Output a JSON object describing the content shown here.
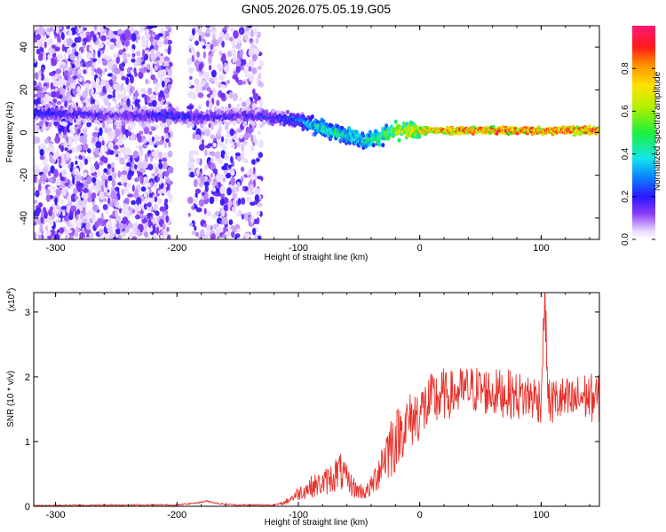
{
  "figure": {
    "title": "GN05.2026.075.05.19.G05"
  },
  "chart_data": [
    {
      "type": "heatmap",
      "xlabel": "Height of straight line (km)",
      "ylabel": "Frequency (Hz)",
      "xlim": [
        -318,
        148
      ],
      "ylim": [
        -50,
        50
      ],
      "x_ticks": [
        -300,
        -200,
        -100,
        0,
        100
      ],
      "x_tick_labels": [
        "-300",
        "-200",
        "-100",
        "0",
        "100"
      ],
      "y_ticks": [
        -40,
        -20,
        0,
        20,
        40
      ],
      "y_tick_labels": [
        "-40",
        "-20",
        "0",
        "20",
        "40"
      ],
      "ridge": {
        "x": [
          -318,
          -290,
          -250,
          -210,
          -180,
          -150,
          -120,
          -100,
          -85,
          -70,
          -60,
          -50,
          -45,
          -35,
          -25,
          -15,
          0,
          30,
          60,
          100,
          148
        ],
        "freq": [
          9,
          9,
          8,
          8,
          7,
          8,
          7,
          6,
          3,
          0,
          -1,
          -3,
          -4,
          -2,
          0,
          1,
          1,
          1,
          1,
          1,
          1
        ],
        "amplitude": [
          0.25,
          0.22,
          0.18,
          0.25,
          0.22,
          0.2,
          0.25,
          0.3,
          0.45,
          0.5,
          0.5,
          0.45,
          0.45,
          0.55,
          0.6,
          0.7,
          0.8,
          0.85,
          0.9,
          0.9,
          0.9
        ]
      },
      "colorbar": {
        "label": "Normalized spectral amplitude",
        "range": [
          0.0,
          1.0
        ],
        "ticks": [
          0.0,
          0.2,
          0.4,
          0.6,
          0.8
        ],
        "tick_labels": [
          "0.0",
          "0.2",
          "0.4",
          "0.6",
          "0.8"
        ]
      }
    },
    {
      "type": "line",
      "xlabel": "Height of straight line (km)",
      "ylabel": "SNR (10 * v/v)",
      "y_multiplier": "(x10",
      "y_multiplier_exp": "4",
      "y_multiplier_close": ")",
      "xlim": [
        -318,
        148
      ],
      "ylim": [
        0,
        3.3
      ],
      "x_ticks": [
        -300,
        -200,
        -100,
        0,
        100
      ],
      "x_tick_labels": [
        "-300",
        "-200",
        "-100",
        "0",
        "100"
      ],
      "y_ticks": [
        0,
        1,
        2,
        3
      ],
      "y_tick_labels": [
        "0",
        "1",
        "2",
        "3"
      ],
      "color": "#e8302a",
      "series": [
        {
          "name": "SNR",
          "x": [
            -318,
            -250,
            -200,
            -185,
            -175,
            -165,
            -150,
            -120,
            -112,
            -100,
            -90,
            -80,
            -72,
            -66,
            -60,
            -52,
            -44,
            -40,
            -35,
            -30,
            -24,
            -18,
            -12,
            -6,
            0,
            6,
            12,
            20,
            30,
            40,
            50,
            60,
            70,
            80,
            90,
            100,
            103,
            106,
            115,
            125,
            135,
            148
          ],
          "y": [
            0.01,
            0.02,
            0.02,
            0.05,
            0.08,
            0.04,
            0.02,
            0.02,
            0.05,
            0.2,
            0.3,
            0.35,
            0.45,
            0.55,
            0.4,
            0.25,
            0.22,
            0.3,
            0.5,
            0.75,
            0.95,
            1.1,
            1.25,
            1.35,
            1.45,
            1.55,
            1.65,
            1.7,
            1.75,
            1.8,
            1.8,
            1.75,
            1.75,
            1.7,
            1.7,
            1.65,
            3.25,
            1.6,
            1.65,
            1.6,
            1.7,
            1.65
          ]
        }
      ]
    }
  ]
}
